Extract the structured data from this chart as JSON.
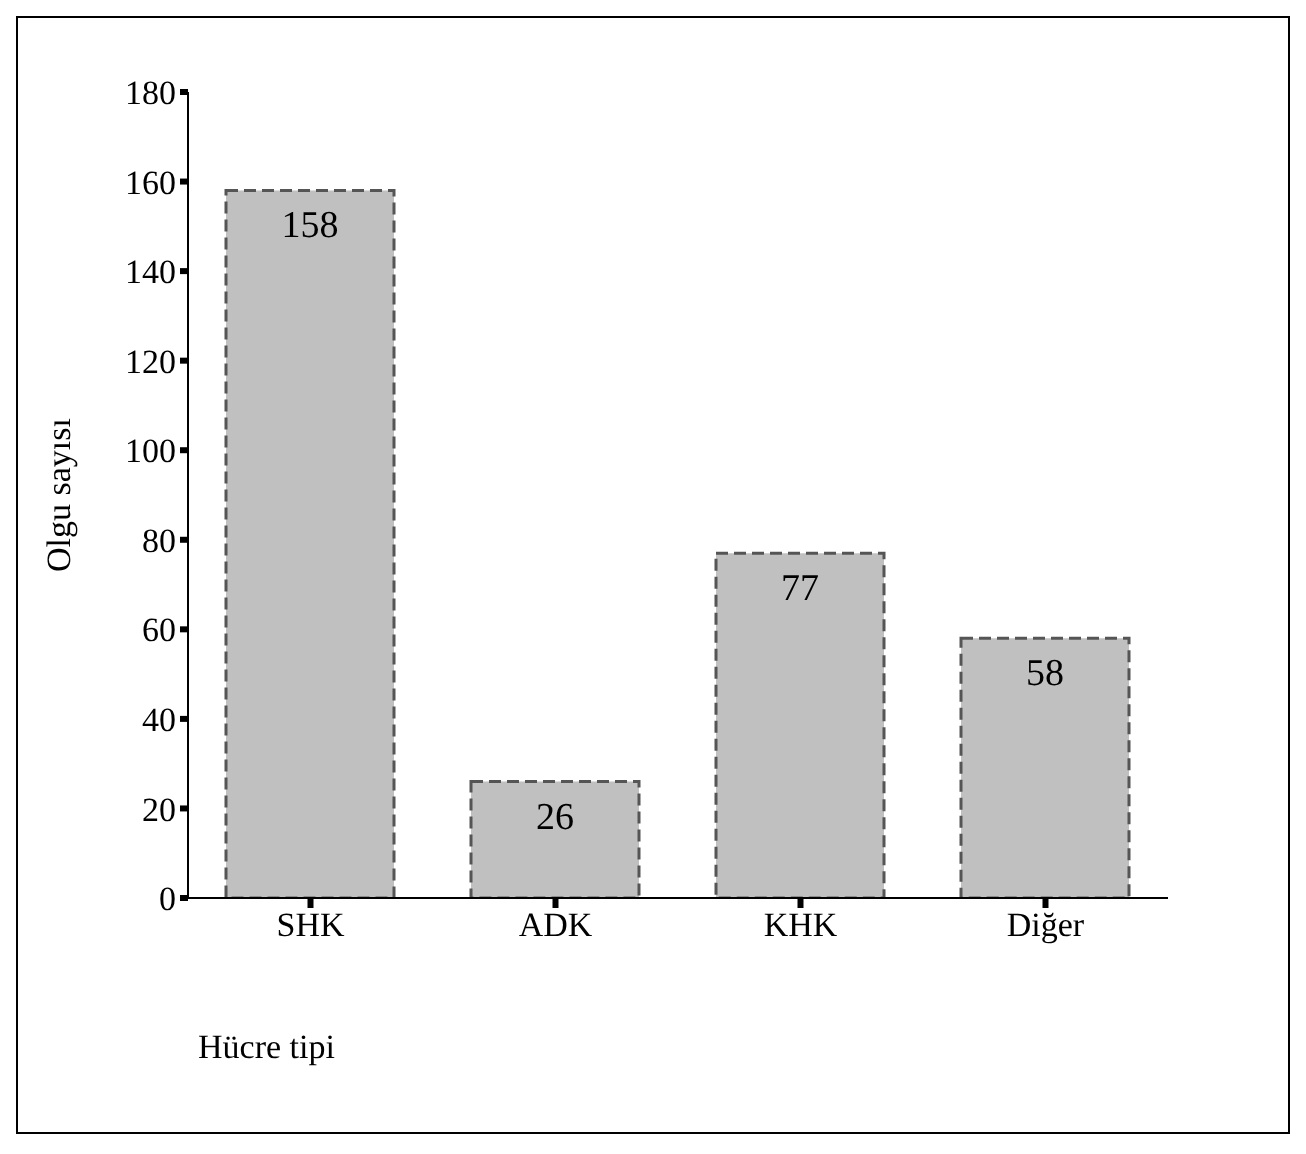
{
  "chart_data": {
    "type": "bar",
    "xlabel": "Hücre tipi",
    "ylabel": "Olgu sayısı",
    "categories": [
      "SHK",
      "ADK",
      "KHK",
      "Diğer"
    ],
    "values": [
      158,
      26,
      77,
      58
    ],
    "color": "#c0c0c0",
    "ylim": [
      0,
      180
    ],
    "yticks": [
      0,
      20,
      40,
      60,
      80,
      100,
      120,
      140,
      160,
      180
    ],
    "data_labels": true
  }
}
